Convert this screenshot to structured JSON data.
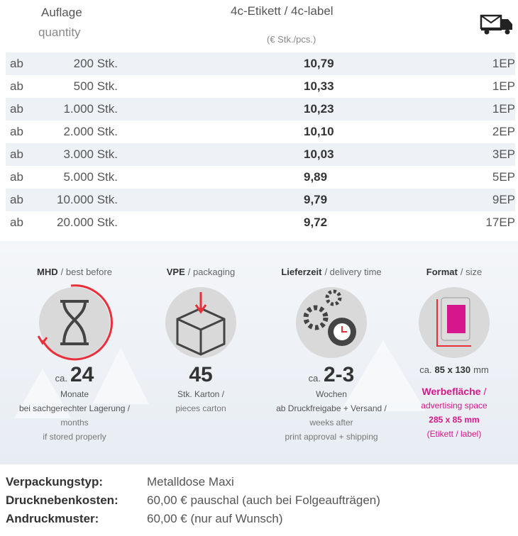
{
  "header": {
    "quantity_de": "Auflage",
    "quantity_en": "quantity",
    "label": "4c-Etikett / 4c-label",
    "unit": "(€ Stk./pcs.)"
  },
  "table": {
    "rows": [
      [
        "ab",
        "200 Stk.",
        "10,79",
        "1EP"
      ],
      [
        "ab",
        "500 Stk.",
        "10,33",
        "1EP"
      ],
      [
        "ab",
        "1.000 Stk.",
        "10,23",
        "1EP"
      ],
      [
        "ab",
        "2.000 Stk.",
        "10,10",
        "2EP"
      ],
      [
        "ab",
        "3.000 Stk.",
        "10,03",
        "3EP"
      ],
      [
        "ab",
        "5.000 Stk.",
        "9,89",
        "5EP"
      ],
      [
        "ab",
        "10.000 Stk.",
        "9,79",
        "9EP"
      ],
      [
        "ab",
        "20.000 Stk.",
        "9,72",
        "17EP"
      ]
    ]
  },
  "info": [
    {
      "title": "MHD",
      "subtitle": "/ best before",
      "ca": "ca.",
      "big": "24",
      "lines": [
        "Monate",
        "bei sachgerechter Lagerung /"
      ],
      "lines_en": [
        "months",
        "if stored properly"
      ]
    },
    {
      "title": "VPE",
      "subtitle": "/ packaging",
      "big": "45",
      "lines": [
        "Stk. Karton /"
      ],
      "lines_en": [
        "pieces carton"
      ]
    },
    {
      "title": "Lieferzeit",
      "subtitle": "/ delivery time",
      "ca": "ca.",
      "big": "2-3",
      "lines": [
        "Wochen",
        "ab Druckfreigabe + Versand /"
      ],
      "lines_en": [
        "weeks after",
        "print approval + shipping"
      ]
    },
    {
      "title": "Format",
      "subtitle": "/ size",
      "size_prefix": "ca.",
      "size": "85 x 130",
      "size_unit": "mm",
      "area_title": "Werbefläche",
      "area_slash": "/",
      "lines_en": [
        "advertising space",
        "285 x 85 mm",
        "(Etikett / label)"
      ]
    }
  ],
  "footer": [
    [
      "Verpackungstyp:",
      "Metalldose Maxi"
    ],
    [
      "Drucknebenkosten:",
      "60,00 € pauschal (auch bei Folgeaufträgen)"
    ],
    [
      "Andruckmuster:",
      "60,00 € (nur auf Wunsch)"
    ]
  ]
}
